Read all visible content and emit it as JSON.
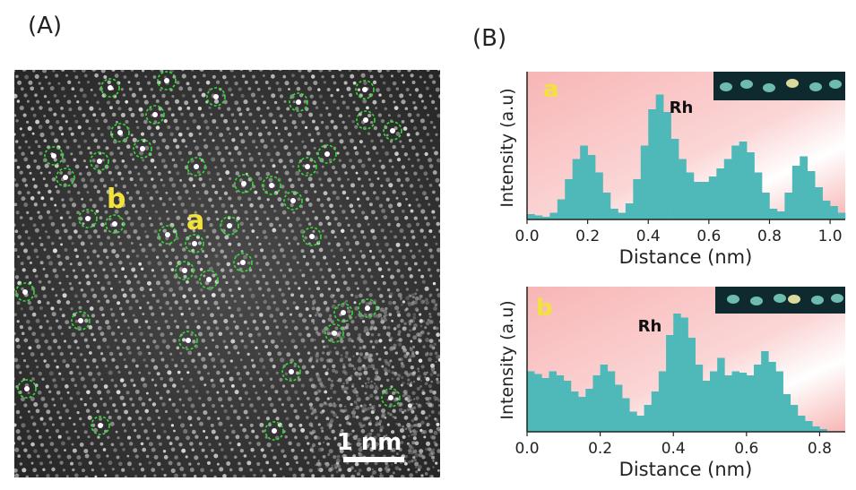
{
  "figure": {
    "panel_a_label": "(A)",
    "panel_b_label": "(B)"
  },
  "tem_image": {
    "label_a": "a",
    "label_b": "b",
    "scale_bar_label": "1 nm",
    "circle_color": "#33dd33",
    "annotation_color": "#f2e23a"
  },
  "colors": {
    "bar": "#4fb8b9",
    "background_pink": "#f8b5b5",
    "panel_letter": "#f2e23a"
  },
  "chart_data": [
    {
      "type": "bar",
      "panel": "a",
      "xlabel": "Distance (nm)",
      "ylabel": "Intensity (a.u)",
      "annotation": "Rh",
      "xlim": [
        0.0,
        1.05
      ],
      "xticks": [
        "0.0",
        "0.2",
        "0.4",
        "0.6",
        "0.8",
        "1.0"
      ],
      "ylim": [
        0,
        1
      ],
      "x": [
        0.0,
        0.025,
        0.05,
        0.075,
        0.1,
        0.125,
        0.15,
        0.175,
        0.2,
        0.225,
        0.25,
        0.275,
        0.3,
        0.325,
        0.35,
        0.375,
        0.4,
        0.425,
        0.45,
        0.475,
        0.5,
        0.525,
        0.55,
        0.575,
        0.6,
        0.625,
        0.65,
        0.675,
        0.7,
        0.725,
        0.75,
        0.775,
        0.8,
        0.825,
        0.85,
        0.875,
        0.9,
        0.925,
        0.95,
        0.975,
        1.0,
        1.025
      ],
      "values": [
        0.04,
        0.03,
        0.02,
        0.05,
        0.15,
        0.3,
        0.45,
        0.55,
        0.48,
        0.35,
        0.2,
        0.08,
        0.05,
        0.12,
        0.3,
        0.55,
        0.82,
        0.93,
        0.8,
        0.6,
        0.45,
        0.35,
        0.28,
        0.28,
        0.32,
        0.38,
        0.45,
        0.55,
        0.58,
        0.5,
        0.35,
        0.2,
        0.08,
        0.06,
        0.2,
        0.4,
        0.47,
        0.36,
        0.24,
        0.14,
        0.1,
        0.05
      ]
    },
    {
      "type": "bar",
      "panel": "b",
      "xlabel": "Distance (nm)",
      "ylabel": "Intensity (a.u)",
      "annotation": "Rh",
      "xlim": [
        0.0,
        0.87
      ],
      "xticks": [
        "0.0",
        "0.2",
        "0.4",
        "0.6",
        "0.8"
      ],
      "ylim": [
        0,
        1
      ],
      "x": [
        0.0,
        0.02,
        0.04,
        0.06,
        0.08,
        0.1,
        0.12,
        0.14,
        0.16,
        0.18,
        0.2,
        0.22,
        0.24,
        0.26,
        0.28,
        0.3,
        0.32,
        0.34,
        0.36,
        0.38,
        0.4,
        0.42,
        0.44,
        0.46,
        0.48,
        0.5,
        0.52,
        0.54,
        0.56,
        0.58,
        0.6,
        0.62,
        0.64,
        0.66,
        0.68,
        0.7,
        0.72,
        0.74,
        0.76,
        0.78,
        0.8
      ],
      "values": [
        0.45,
        0.43,
        0.4,
        0.45,
        0.42,
        0.38,
        0.3,
        0.26,
        0.32,
        0.42,
        0.5,
        0.45,
        0.35,
        0.25,
        0.15,
        0.12,
        0.2,
        0.3,
        0.45,
        0.72,
        0.88,
        0.85,
        0.7,
        0.5,
        0.38,
        0.45,
        0.55,
        0.42,
        0.45,
        0.44,
        0.42,
        0.5,
        0.6,
        0.52,
        0.45,
        0.28,
        0.2,
        0.12,
        0.08,
        0.04,
        0.02
      ]
    }
  ]
}
